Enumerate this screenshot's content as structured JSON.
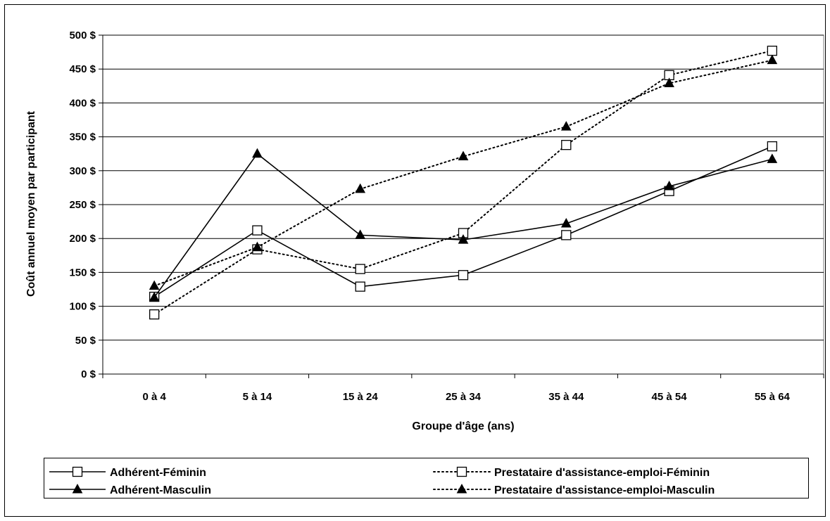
{
  "chart_data": {
    "type": "line",
    "title": "",
    "xlabel": "Groupe d'âge (ans)",
    "ylabel": "Coût annuel moyen par participant",
    "categories": [
      "0 à 4",
      "5 à 14",
      "15 à 24",
      "25 à 34",
      "35 à 44",
      "45 à 54",
      "55 à 64"
    ],
    "ylim": [
      0,
      500
    ],
    "yticks": [
      0,
      50,
      100,
      150,
      200,
      250,
      300,
      350,
      400,
      450,
      500
    ],
    "ytick_labels": [
      "0 $",
      "50 $",
      "100 $",
      "150 $",
      "200 $",
      "250 $",
      "300 $",
      "350 $",
      "400 $",
      "450 $",
      "500 $"
    ],
    "grid": "horizontal",
    "legend_position": "bottom",
    "series": [
      {
        "name": "Adhérent-Féminin",
        "marker": "square-open",
        "line": "solid",
        "values": [
          114,
          212,
          129,
          146,
          205,
          270,
          336
        ]
      },
      {
        "name": "Prestataire d'assistance-emploi-Féminin",
        "marker": "square-open",
        "line": "dotted",
        "values": [
          88,
          184,
          155,
          208,
          338,
          441,
          477
        ]
      },
      {
        "name": "Adhérent-Masculin",
        "marker": "triangle-filled",
        "line": "solid",
        "values": [
          113,
          325,
          205,
          198,
          222,
          277,
          317
        ]
      },
      {
        "name": "Prestataire d'assistance-emploi-Masculin",
        "marker": "triangle-filled",
        "line": "dotted",
        "values": [
          130,
          187,
          273,
          321,
          365,
          429,
          463
        ]
      }
    ]
  }
}
